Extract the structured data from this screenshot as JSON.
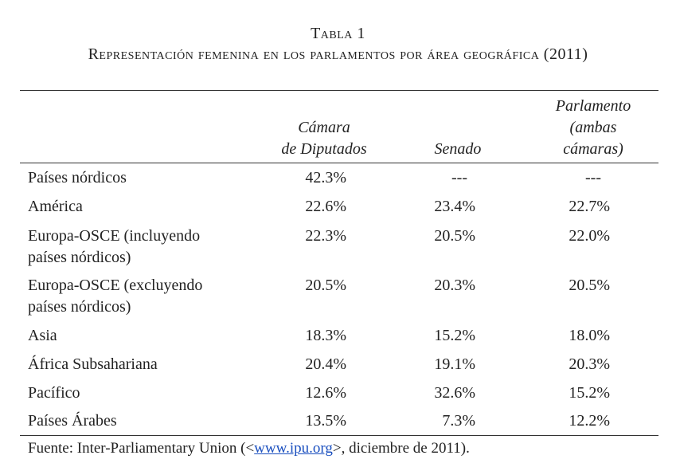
{
  "title": "Tabla 1",
  "subtitle": "Representación femenina en los parlamentos por área geográfica (2011)",
  "table": {
    "header": [
      [
        "Cámara",
        "de Diputados"
      ],
      [
        "Senado"
      ],
      [
        "Parlamento",
        "(ambas",
        "cámaras)"
      ]
    ],
    "rows": [
      {
        "label": [
          "Países nórdicos"
        ],
        "cells": [
          "42.3%",
          "---",
          "---"
        ]
      },
      {
        "label": [
          "América"
        ],
        "cells": [
          "22.6%",
          "23.4%",
          "22.7%"
        ]
      },
      {
        "label": [
          "Europa-OSCE (incluyendo",
          "países nórdicos)"
        ],
        "cells": [
          "22.3%",
          "20.5%",
          "22.0%"
        ]
      },
      {
        "label": [
          "Europa-OSCE (excluyendo",
          "países nórdicos)"
        ],
        "cells": [
          "20.5%",
          "20.3%",
          "20.5%"
        ]
      },
      {
        "label": [
          "Asia"
        ],
        "cells": [
          "18.3%",
          "15.2%",
          "18.0%"
        ]
      },
      {
        "label": [
          "África Subsahariana"
        ],
        "cells": [
          "20.4%",
          "19.1%",
          "20.3%"
        ]
      },
      {
        "label": [
          "Pacífico"
        ],
        "cells": [
          "12.6%",
          "32.6%",
          "15.2%"
        ]
      },
      {
        "label": [
          "Países Árabes"
        ],
        "cells": [
          "13.5%",
          "7.3%",
          "12.2%"
        ]
      }
    ]
  },
  "footer": {
    "prefix": "Fuente: Inter-Parliamentary Union (<",
    "link": "www.ipu.org",
    "suffix": ">, diciembre de 2011)."
  }
}
